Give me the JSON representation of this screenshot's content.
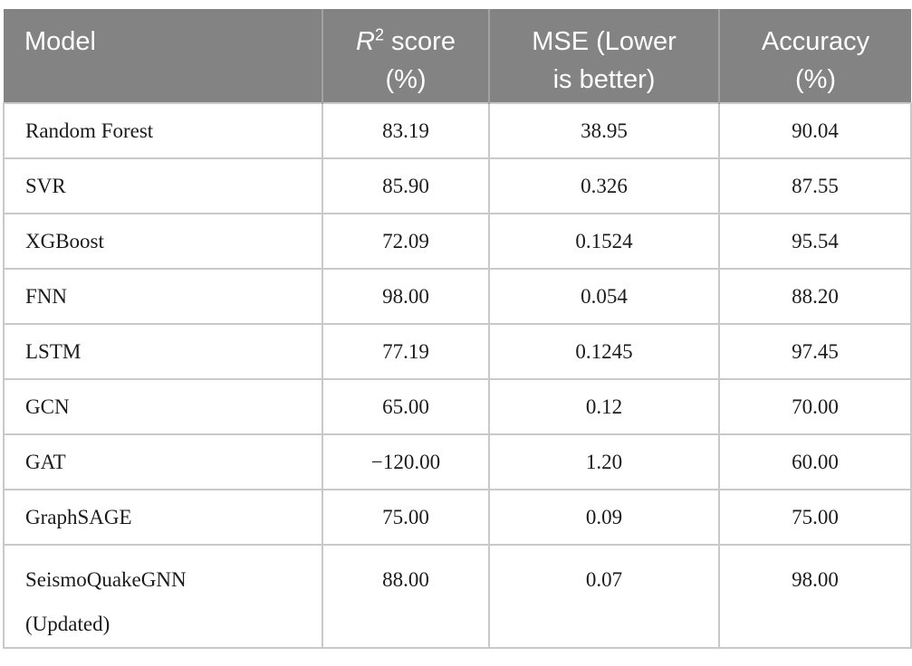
{
  "colors": {
    "header_bg": "#838383",
    "header_divider": "#a2a2a2",
    "grid": "#c9c9c9",
    "header_text": "#ffffff",
    "body_text": "#1b1b1b",
    "page_bg": "#ffffff"
  },
  "chart_data": {
    "type": "table",
    "title": "",
    "columns": [
      "Model",
      "R2 score (%)",
      "MSE (Lower is better)",
      "Accuracy (%)"
    ],
    "rows": [
      [
        "Random Forest",
        83.19,
        38.95,
        90.04
      ],
      [
        "SVR",
        85.9,
        0.326,
        87.55
      ],
      [
        "XGBoost",
        72.09,
        0.1524,
        95.54
      ],
      [
        "FNN",
        98.0,
        0.054,
        88.2
      ],
      [
        "LSTM",
        77.19,
        0.1245,
        97.45
      ],
      [
        "GCN",
        65.0,
        0.12,
        70.0
      ],
      [
        "GAT",
        -120.0,
        1.2,
        60.0
      ],
      [
        "GraphSAGE",
        75.0,
        0.09,
        75.0
      ],
      [
        "SeismoQuakeGNN (Updated)",
        88.0,
        0.07,
        98.0
      ]
    ]
  },
  "table": {
    "header": {
      "model": "Model",
      "r2_symbol": "R",
      "r2_sup": "2",
      "r2_rest": " score\n(%)",
      "mse": "MSE (Lower\nis better)",
      "accuracy": "Accuracy\n(%)"
    },
    "rows": [
      {
        "model": "Random Forest",
        "r2": "83.19",
        "mse": "38.95",
        "accuracy": "90.04"
      },
      {
        "model": "SVR",
        "r2": "85.90",
        "mse": "0.326",
        "accuracy": "87.55"
      },
      {
        "model": "XGBoost",
        "r2": "72.09",
        "mse": "0.1524",
        "accuracy": "95.54"
      },
      {
        "model": "FNN",
        "r2": "98.00",
        "mse": "0.054",
        "accuracy": "88.20"
      },
      {
        "model": "LSTM",
        "r2": "77.19",
        "mse": "0.1245",
        "accuracy": "97.45"
      },
      {
        "model": "GCN",
        "r2": "65.00",
        "mse": "0.12",
        "accuracy": "70.00"
      },
      {
        "model": "GAT",
        "r2": "−120.00",
        "mse": "1.20",
        "accuracy": "60.00"
      },
      {
        "model": "GraphSAGE",
        "r2": "75.00",
        "mse": "0.09",
        "accuracy": "75.00"
      },
      {
        "model": "SeismoQuakeGNN\n(Updated)",
        "r2": "88.00",
        "mse": "0.07",
        "accuracy": "98.00"
      }
    ]
  }
}
